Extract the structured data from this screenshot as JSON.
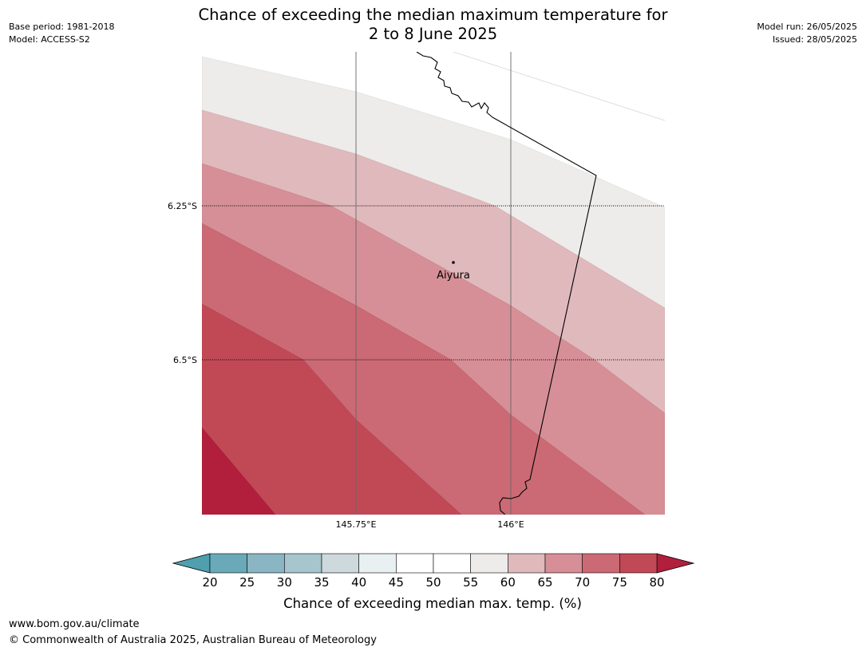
{
  "header": {
    "title_line1": "Chance of exceeding the median maximum temperature for",
    "title_line2": "2 to 8 June 2025",
    "base_period": "Base period: 1981-2018",
    "model": "Model: ACCESS-S2",
    "model_run": "Model run: 26/05/2025",
    "issued": "Issued: 28/05/2025"
  },
  "map": {
    "lat_labels": [
      "6.25°S",
      "6.5°S"
    ],
    "lon_labels": [
      "145.75°E",
      "146°E"
    ],
    "place": {
      "name": "Aiyura"
    },
    "contour_levels_percent": [
      60,
      65,
      70,
      75,
      80
    ]
  },
  "colorbar": {
    "label": "Chance of exceeding median max. temp. (%)",
    "ticks": [
      "20",
      "25",
      "30",
      "35",
      "40",
      "45",
      "50",
      "55",
      "60",
      "65",
      "70",
      "75",
      "80"
    ],
    "under_color": "#4f9fae",
    "over_color": "#b21f3d",
    "colors": [
      "#6aa9b8",
      "#8ab5c3",
      "#a7c5cc",
      "#cdd9dc",
      "#e9f0f1",
      "#ffffff",
      "#ffffff",
      "#edecea",
      "#e0b9bd",
      "#d68f96",
      "#cb6a74",
      "#c14956"
    ]
  },
  "footer": {
    "url": "www.bom.gov.au/climate",
    "copyright": "© Commonwealth of Australia 2025, Australian Bureau of Meteorology"
  }
}
